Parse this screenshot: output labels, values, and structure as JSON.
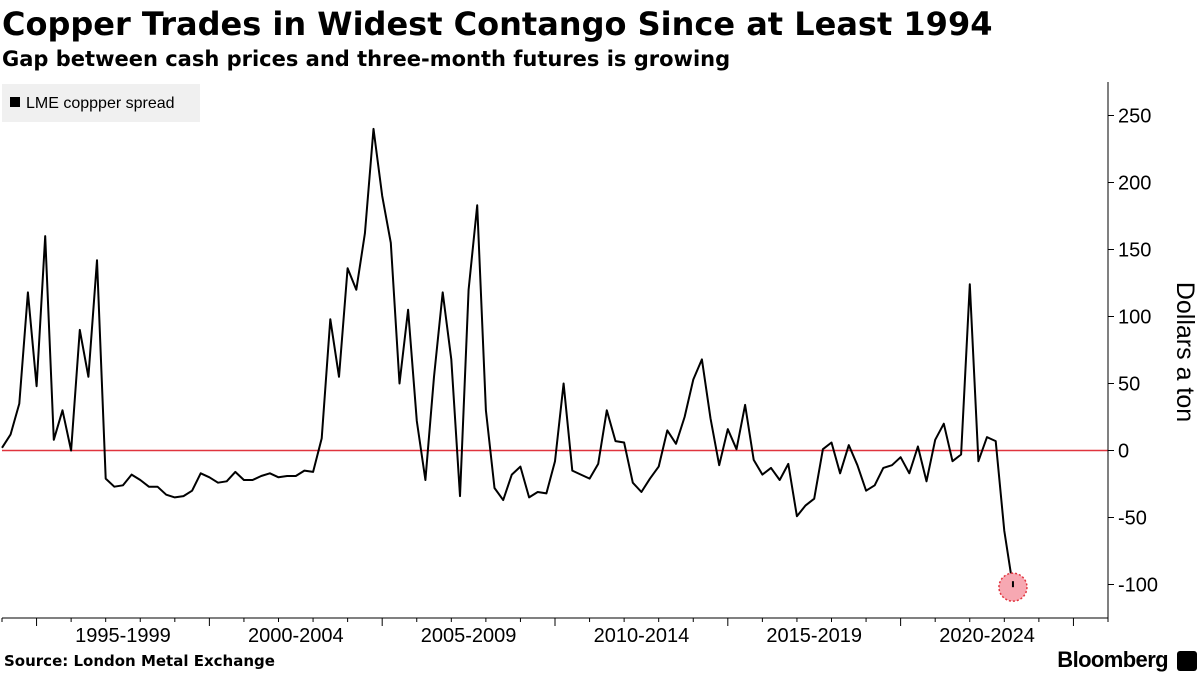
{
  "header": {
    "title": "Copper Trades in Widest Contango Since at Least 1994",
    "subtitle": "Gap between cash prices and three-month futures is growing"
  },
  "footer": {
    "source": "Source: London Metal Exchange",
    "brand": "Bloomberg",
    "brand_icon": "bloomberg-terminal-icon"
  },
  "colors": {
    "series": "#000000",
    "zero_line": "#e0343e",
    "highlight_fill": "#f7a8b2",
    "highlight_stroke": "#e0343e",
    "legend_bg": "#f0f0f0",
    "axis": "#000000"
  },
  "chart_data": {
    "type": "line",
    "title": "Copper Trades in Widest Contango Since at Least 1994",
    "subtitle": "Gap between cash prices and three-month futures is growing",
    "ylabel": "Dollars a ton",
    "ylim": [
      -125,
      275
    ],
    "yticks": [
      250,
      200,
      150,
      100,
      50,
      0,
      -50,
      -100
    ],
    "ytick_labels": [
      "250",
      "200",
      "150",
      "100",
      "50",
      "0",
      "-50",
      "-100"
    ],
    "y_axis_side": "right",
    "x_start": 1994.0,
    "x_end": 2026.0,
    "x_tick_labels": [
      {
        "label": "1995-1999",
        "from": 1995,
        "to": 2000
      },
      {
        "label": "2000-2004",
        "from": 2000,
        "to": 2005
      },
      {
        "label": "2005-2009",
        "from": 2005,
        "to": 2010
      },
      {
        "label": "2010-2014",
        "from": 2010,
        "to": 2015
      },
      {
        "label": "2015-2019",
        "from": 2015,
        "to": 2020
      },
      {
        "label": "2020-2024",
        "from": 2020,
        "to": 2025
      }
    ],
    "grid": false,
    "reference_line": {
      "y": 0
    },
    "legend": {
      "position": "top-left"
    },
    "series": [
      {
        "name": "LME coppper spread",
        "points": [
          [
            1994.0,
            2
          ],
          [
            1994.25,
            12
          ],
          [
            1994.5,
            35
          ],
          [
            1994.75,
            118
          ],
          [
            1995.0,
            48
          ],
          [
            1995.25,
            160
          ],
          [
            1995.5,
            8
          ],
          [
            1995.75,
            30
          ],
          [
            1996.0,
            0
          ],
          [
            1996.25,
            90
          ],
          [
            1996.5,
            55
          ],
          [
            1996.75,
            142
          ],
          [
            1997.0,
            -21
          ],
          [
            1997.25,
            -27
          ],
          [
            1997.5,
            -26
          ],
          [
            1997.75,
            -18
          ],
          [
            1998.0,
            -22
          ],
          [
            1998.25,
            -27
          ],
          [
            1998.5,
            -27
          ],
          [
            1998.75,
            -33
          ],
          [
            1999.0,
            -35
          ],
          [
            1999.25,
            -34
          ],
          [
            1999.5,
            -30
          ],
          [
            1999.75,
            -17
          ],
          [
            2000.0,
            -20
          ],
          [
            2000.25,
            -24
          ],
          [
            2000.5,
            -23
          ],
          [
            2000.75,
            -16
          ],
          [
            2001.0,
            -22
          ],
          [
            2001.25,
            -22
          ],
          [
            2001.5,
            -19
          ],
          [
            2001.75,
            -17
          ],
          [
            2002.0,
            -20
          ],
          [
            2002.25,
            -19
          ],
          [
            2002.5,
            -19
          ],
          [
            2002.75,
            -15
          ],
          [
            2003.0,
            -16
          ],
          [
            2003.25,
            9
          ],
          [
            2003.5,
            98
          ],
          [
            2003.75,
            55
          ],
          [
            2004.0,
            136
          ],
          [
            2004.25,
            120
          ],
          [
            2004.5,
            162
          ],
          [
            2004.75,
            240
          ],
          [
            2005.0,
            190
          ],
          [
            2005.25,
            155
          ],
          [
            2005.5,
            50
          ],
          [
            2005.75,
            105
          ],
          [
            2006.0,
            22
          ],
          [
            2006.25,
            -22
          ],
          [
            2006.5,
            55
          ],
          [
            2006.75,
            118
          ],
          [
            2007.0,
            68
          ],
          [
            2007.25,
            -34
          ],
          [
            2007.5,
            120
          ],
          [
            2007.75,
            183
          ],
          [
            2008.0,
            30
          ],
          [
            2008.25,
            -28
          ],
          [
            2008.5,
            -37
          ],
          [
            2008.75,
            -18
          ],
          [
            2009.0,
            -12
          ],
          [
            2009.25,
            -35
          ],
          [
            2009.5,
            -31
          ],
          [
            2009.75,
            -32
          ],
          [
            2010.0,
            -8
          ],
          [
            2010.25,
            50
          ],
          [
            2010.5,
            -15
          ],
          [
            2010.75,
            -18
          ],
          [
            2011.0,
            -21
          ],
          [
            2011.25,
            -10
          ],
          [
            2011.5,
            30
          ],
          [
            2011.75,
            7
          ],
          [
            2012.0,
            6
          ],
          [
            2012.25,
            -24
          ],
          [
            2012.5,
            -31
          ],
          [
            2012.75,
            -21
          ],
          [
            2013.0,
            -12
          ],
          [
            2013.25,
            15
          ],
          [
            2013.5,
            5
          ],
          [
            2013.75,
            25
          ],
          [
            2014.0,
            53
          ],
          [
            2014.25,
            68
          ],
          [
            2014.5,
            24
          ],
          [
            2014.75,
            -11
          ],
          [
            2015.0,
            16
          ],
          [
            2015.25,
            1
          ],
          [
            2015.5,
            34
          ],
          [
            2015.75,
            -7
          ],
          [
            2016.0,
            -18
          ],
          [
            2016.25,
            -13
          ],
          [
            2016.5,
            -22
          ],
          [
            2016.75,
            -10
          ],
          [
            2017.0,
            -49
          ],
          [
            2017.25,
            -41
          ],
          [
            2017.5,
            -36
          ],
          [
            2017.75,
            1
          ],
          [
            2018.0,
            6
          ],
          [
            2018.25,
            -17
          ],
          [
            2018.5,
            4
          ],
          [
            2018.75,
            -11
          ],
          [
            2019.0,
            -30
          ],
          [
            2019.25,
            -26
          ],
          [
            2019.5,
            -13
          ],
          [
            2019.75,
            -11
          ],
          [
            2020.0,
            -5
          ],
          [
            2020.25,
            -17
          ],
          [
            2020.5,
            3
          ],
          [
            2020.75,
            -23
          ],
          [
            2021.0,
            8
          ],
          [
            2021.25,
            20
          ],
          [
            2021.5,
            -8
          ],
          [
            2021.75,
            -3
          ],
          [
            2022.0,
            124
          ],
          [
            2022.25,
            -8
          ],
          [
            2022.5,
            10
          ],
          [
            2022.75,
            7
          ],
          [
            2023.0,
            -60
          ],
          [
            2023.25,
            -102
          ]
        ],
        "highlight_last": true
      }
    ]
  }
}
